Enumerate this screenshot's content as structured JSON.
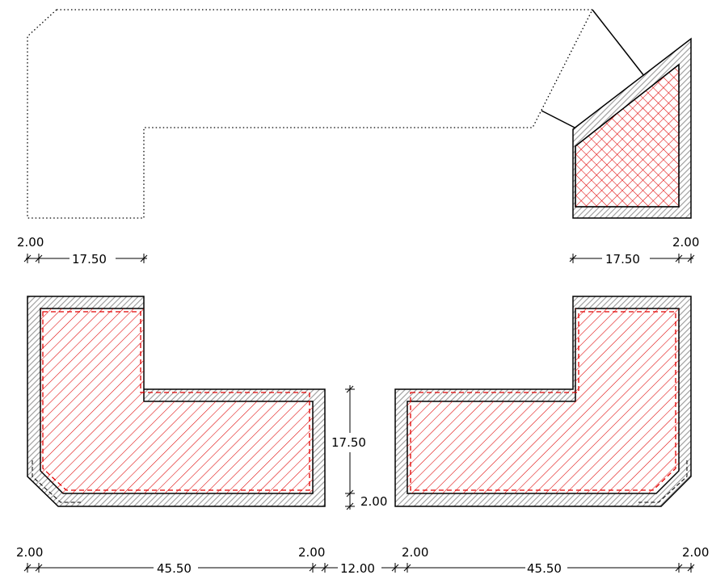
{
  "drawing": {
    "colors": {
      "wall_hatch": "#9a9a9a",
      "fill_hatch": "#e00000",
      "outline": "#000000",
      "background": "#ffffff"
    },
    "dimensions": {
      "top_left_wall": "2.00",
      "top_left_length": "17.50",
      "top_right_wall": "2.00",
      "top_right_length": "17.50",
      "middle_vertical_length": "17.50",
      "middle_vertical_wall": "2.00",
      "bottom_left_wall_a": "2.00",
      "bottom_left_length": "45.50",
      "bottom_left_wall_b": "2.00",
      "bottom_gap": "12.00",
      "bottom_right_wall_a": "2.00",
      "bottom_right_length": "45.50",
      "bottom_right_wall_b": "2.00"
    }
  }
}
